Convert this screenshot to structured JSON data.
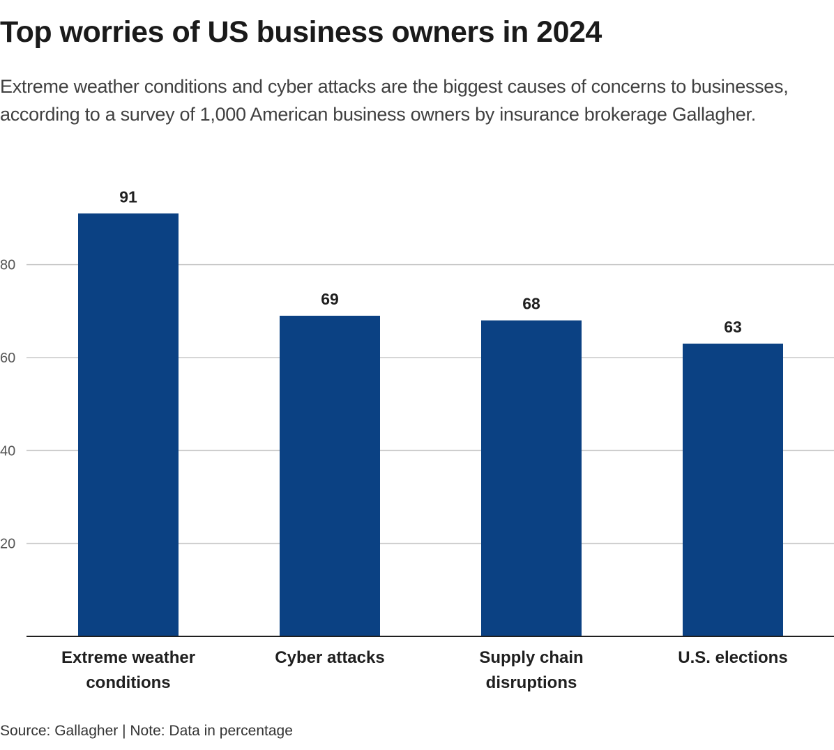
{
  "chart_data": {
    "type": "bar",
    "title": "Top worries of US business owners in 2024",
    "subtitle": "Extreme weather conditions and cyber attacks are the biggest causes of concerns to businesses, according to a survey of 1,000 American business owners by insurance brokerage Gallagher.",
    "categories": [
      [
        "Extreme weather",
        "conditions"
      ],
      [
        "Cyber attacks"
      ],
      [
        "Supply chain",
        "disruptions"
      ],
      [
        "U.S. elections"
      ]
    ],
    "values": [
      91,
      69,
      68,
      63
    ],
    "data_labels": [
      "91",
      "69",
      "68",
      "63"
    ],
    "xlabel": "",
    "ylabel": "",
    "ylim": [
      0,
      95
    ],
    "yticks": [
      20,
      40,
      60,
      80
    ],
    "grid": true,
    "bar_color": "#0b4183",
    "footer": "Source: Gallagher | Note: Data in percentage"
  }
}
